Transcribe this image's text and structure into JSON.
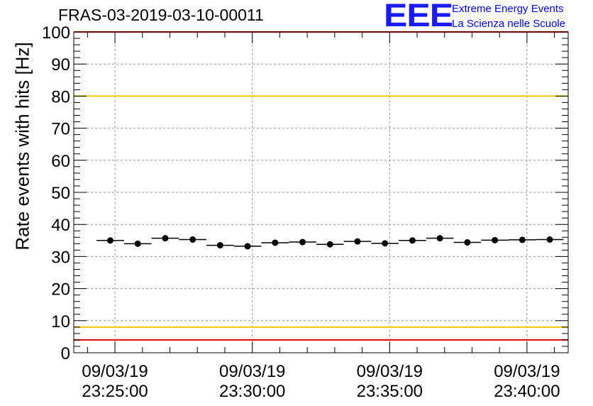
{
  "header": {
    "title": "FRAS-03-2019-03-10-00011",
    "logo_text": "EEE",
    "logo_line1": "Extreme Energy Events",
    "logo_line2": "La Scienza nelle Scuole"
  },
  "chart_data": {
    "type": "scatter",
    "title": "FRAS-03-2019-03-10-00011",
    "xlabel": "",
    "ylabel": "Rate events with hits [Hz]",
    "ylim": [
      0,
      100
    ],
    "xlim_minutes": [
      23.5,
      41.5
    ],
    "grid": true,
    "x_ticks": [
      {
        "minute": 25,
        "date": "09/03/19",
        "time": "23:25:00"
      },
      {
        "minute": 30,
        "date": "09/03/19",
        "time": "23:30:00"
      },
      {
        "minute": 35,
        "date": "09/03/19",
        "time": "23:35:00"
      },
      {
        "minute": 40,
        "date": "09/03/19",
        "time": "23:40:00"
      }
    ],
    "y_ticks": [
      0,
      10,
      20,
      30,
      40,
      50,
      60,
      70,
      80,
      90,
      100
    ],
    "reference_lines": [
      {
        "y": 100,
        "color": "#e00000"
      },
      {
        "y": 80,
        "color": "#f0c800"
      },
      {
        "y": 8,
        "color": "#f0c800"
      },
      {
        "y": 4,
        "color": "#e00000"
      }
    ],
    "series": [
      {
        "marker_color": "#000000",
        "x": [
          24.83,
          25.83,
          26.83,
          27.83,
          28.83,
          29.83,
          30.83,
          31.83,
          32.83,
          33.83,
          34.83,
          35.83,
          36.83,
          37.83,
          38.83,
          39.83,
          40.83
        ],
        "y": [
          35.0,
          34.0,
          35.7,
          35.3,
          33.5,
          33.2,
          34.3,
          34.5,
          33.8,
          34.7,
          34.1,
          35.0,
          35.7,
          34.4,
          35.1,
          35.2,
          35.3
        ],
        "x_halfwidth": 0.5
      }
    ]
  }
}
